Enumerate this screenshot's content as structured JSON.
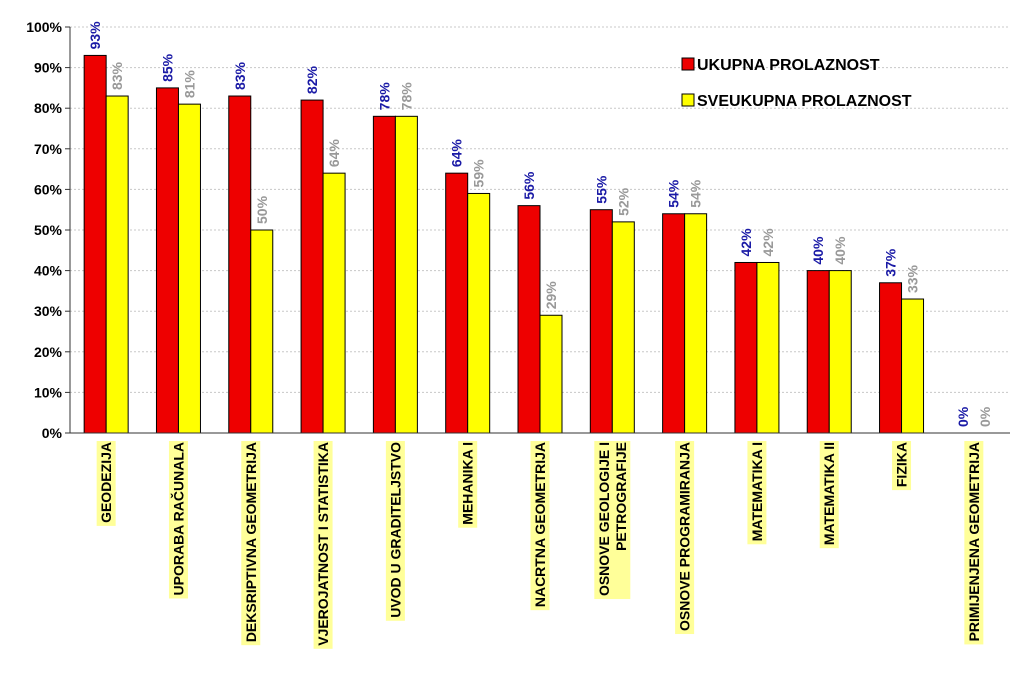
{
  "chart_data": {
    "type": "bar",
    "categories": [
      "GEODEZIJA",
      "UPORABA RAČUNALA",
      "DEKSRIPTIVNA GEOMETRIJA",
      "VJEROJATNOST I STATISTIKA",
      "UVOD U GRADITELJSTVO",
      "MEHANIKA I",
      "NACRTNA GEOMETRIJA",
      [
        "OSNOVE GEOLOGIJE I",
        "PETROGRAFIJE"
      ],
      "OSNOVE PROGRAMIRANJA",
      "MATEMATIKA I",
      "MATEMATIKA II",
      "FIZIKA",
      "PRIMIJENJENA GEOMETRIJA"
    ],
    "series": [
      {
        "name": "UKUPNA PROLAZNOST",
        "color": "#ee0000",
        "label_color": "#1a1aa6",
        "values": [
          93,
          85,
          83,
          82,
          78,
          64,
          56,
          55,
          54,
          42,
          40,
          37,
          0
        ]
      },
      {
        "name": "SVEUKUPNA PROLAZNOST",
        "color": "#ffff00",
        "label_color": "#999999",
        "values": [
          83,
          81,
          50,
          64,
          78,
          59,
          29,
          52,
          54,
          42,
          40,
          33,
          0
        ]
      }
    ],
    "value_suffix": "%",
    "ylim": [
      0,
      100
    ],
    "yticks": [
      "0%",
      "10%",
      "20%",
      "30%",
      "40%",
      "50%",
      "60%",
      "70%",
      "80%",
      "90%",
      "100%"
    ],
    "grid": true,
    "legend_position": "top-right",
    "category_label_highlight": "#ffff99"
  }
}
